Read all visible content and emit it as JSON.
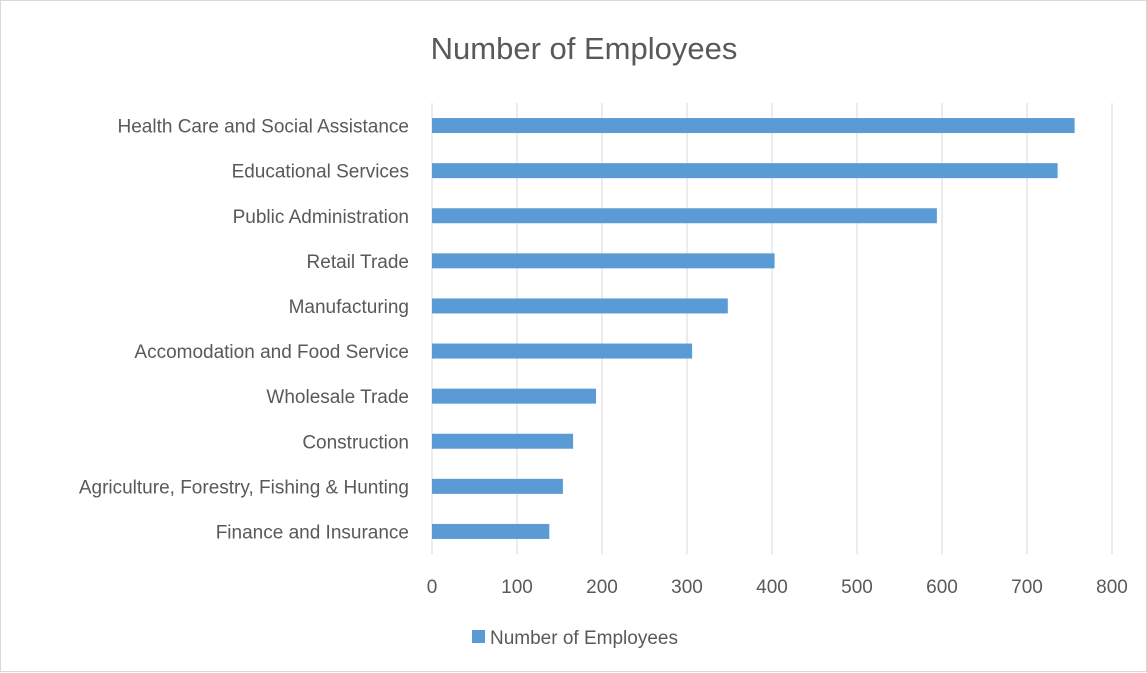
{
  "chart_data": {
    "type": "bar",
    "orientation": "horizontal",
    "title": "Number of Employees",
    "categories": [
      "Health Care and Social Assistance",
      "Educational Services",
      "Public Administration",
      "Retail Trade",
      "Manufacturing",
      "Accomodation and Food Service",
      "Wholesale Trade",
      "Construction",
      "Agriculture, Forestry, Fishing & Hunting",
      "Finance and Insurance"
    ],
    "series": [
      {
        "name": "Number of Employees",
        "color": "#5b9bd5",
        "values": [
          756,
          736,
          594,
          403,
          348,
          306,
          193,
          166,
          154,
          138
        ]
      }
    ],
    "xlim": [
      0,
      800
    ],
    "xticks": [
      "0",
      "100",
      "200",
      "300",
      "400",
      "500",
      "600",
      "700",
      "800"
    ],
    "grid": true,
    "legend_position": "bottom"
  }
}
